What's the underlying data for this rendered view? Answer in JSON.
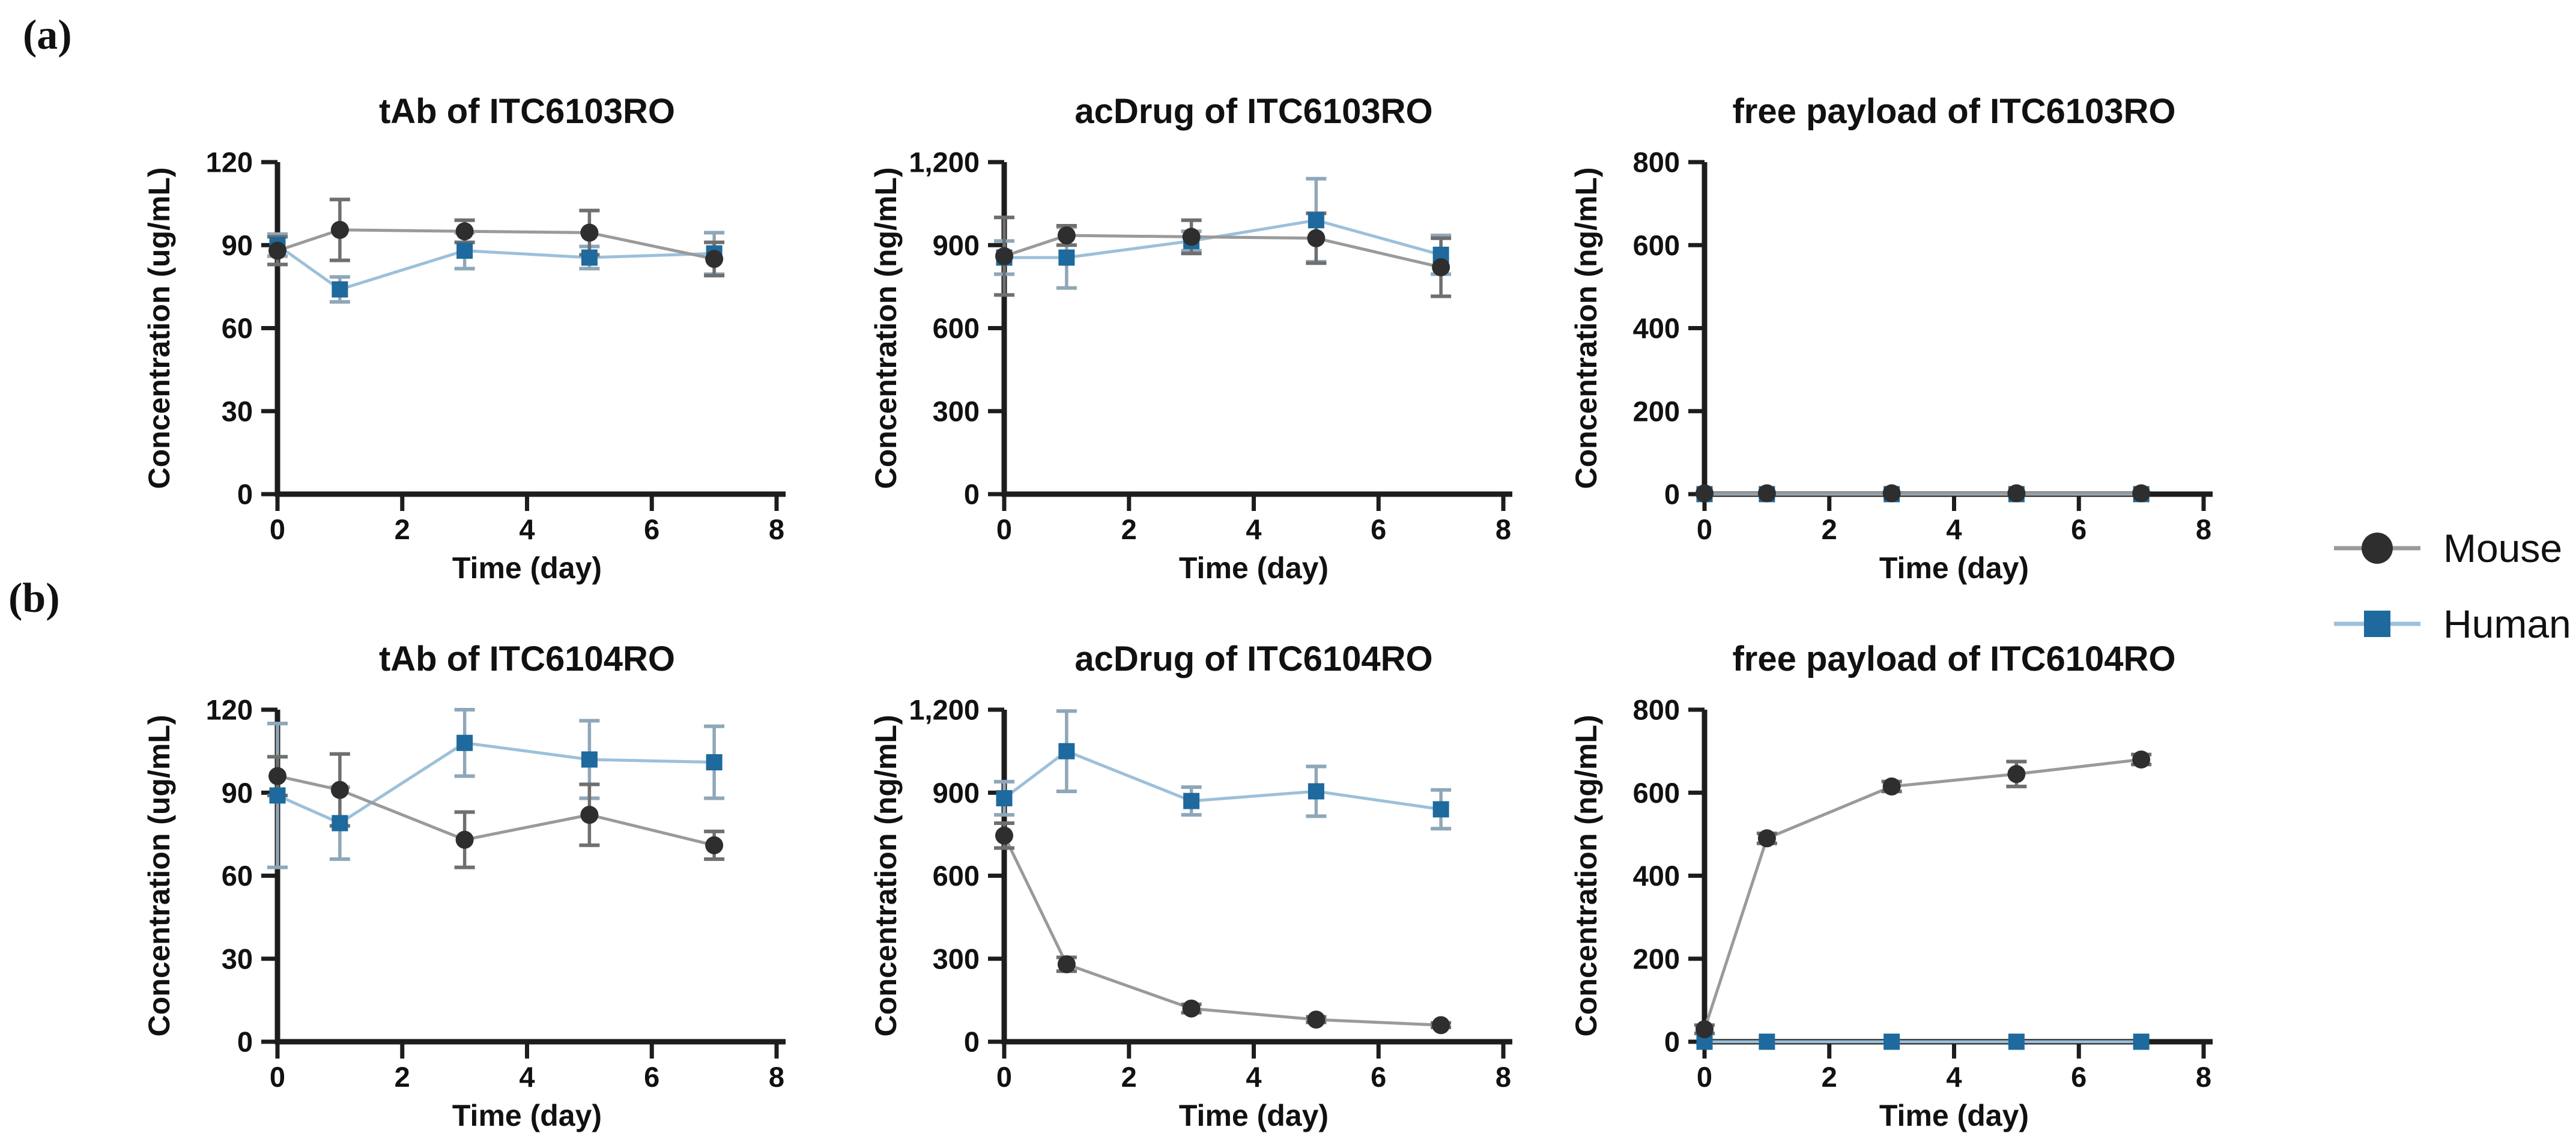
{
  "panels": [
    {
      "label": "(a)"
    },
    {
      "label": "(b)"
    }
  ],
  "legend": {
    "items": [
      {
        "label": "Mouse",
        "marker": "circle"
      },
      {
        "label": "Human",
        "marker": "square"
      }
    ]
  },
  "colors": {
    "mouse_marker": "#2e2e2e",
    "mouse_line": "#9a9a9a",
    "mouse_error": "#6f6f6f",
    "human_marker": "#1e699d",
    "human_line": "#9cc0da",
    "human_error": "#8fa7b8",
    "axis": "#1d1d1d",
    "text": "#111111"
  },
  "chart_data": [
    {
      "id": "tab-itc6103ro",
      "panel": "a",
      "type": "line",
      "title": "tAb of ITC6103RO",
      "ylabel": "Concentration  (ug/mL)",
      "xlabel": "Time (day)",
      "ylim": [
        0,
        120
      ],
      "ytick_values": [
        0,
        30,
        60,
        90,
        120
      ],
      "ytick_labels": [
        "0",
        "30",
        "60",
        "90",
        "120"
      ],
      "xlim": [
        0,
        8
      ],
      "xticks": [
        0,
        2,
        4,
        6,
        8
      ],
      "x": [
        0,
        1,
        3,
        5,
        7
      ],
      "series": [
        {
          "name": "Mouse",
          "values": [
            88,
            95.5,
            95,
            94.5,
            85
          ],
          "errors": [
            5,
            11,
            4,
            8,
            6
          ]
        },
        {
          "name": "Human",
          "values": [
            90,
            74,
            88,
            85.5,
            87
          ],
          "errors": [
            4,
            4.5,
            6.5,
            4,
            7.5
          ]
        }
      ]
    },
    {
      "id": "acdrug-itc6103ro",
      "panel": "a",
      "type": "line",
      "title": "acDrug of ITC6103RO",
      "ylabel": "Concentration (ng/mL)",
      "xlabel": "Time (day)",
      "ylim": [
        0,
        1200
      ],
      "ytick_values": [
        0,
        300,
        600,
        900,
        1200
      ],
      "ytick_labels": [
        "0",
        "300",
        "600",
        "900",
        "1,200"
      ],
      "xlim": [
        0,
        8
      ],
      "xticks": [
        0,
        2,
        4,
        6,
        8
      ],
      "x": [
        0,
        1,
        3,
        5,
        7
      ],
      "series": [
        {
          "name": "Mouse",
          "values": [
            860,
            935,
            930,
            925,
            820
          ],
          "errors": [
            140,
            35,
            60,
            90,
            105
          ]
        },
        {
          "name": "Human",
          "values": [
            855,
            855,
            915,
            990,
            865
          ],
          "errors": [
            60,
            110,
            35,
            150,
            70
          ]
        }
      ]
    },
    {
      "id": "freepayload-itc6103ro",
      "panel": "a",
      "type": "line",
      "title": "free payload of ITC6103RO",
      "ylabel": "Concentration  (ng/mL)",
      "xlabel": "Time (day)",
      "ylim": [
        0,
        800
      ],
      "ytick_values": [
        0,
        200,
        400,
        600,
        800
      ],
      "ytick_labels": [
        "0",
        "200",
        "400",
        "600",
        "800"
      ],
      "xlim": [
        0,
        8
      ],
      "xticks": [
        0,
        2,
        4,
        6,
        8
      ],
      "x": [
        0,
        1,
        3,
        5,
        7
      ],
      "series": [
        {
          "name": "Mouse",
          "values": [
            2,
            2,
            2,
            2,
            2
          ],
          "errors": [
            0,
            0,
            0,
            0,
            0
          ]
        },
        {
          "name": "Human",
          "values": [
            0,
            0,
            0,
            0,
            0
          ],
          "errors": [
            0,
            0,
            0,
            0,
            0
          ]
        }
      ]
    },
    {
      "id": "tab-itc6104ro",
      "panel": "b",
      "type": "line",
      "title": "tAb of ITC6104RO",
      "ylabel": "Concentration  (ug/mL)",
      "xlabel": "Time (day)",
      "ylim": [
        0,
        120
      ],
      "ytick_values": [
        0,
        30,
        60,
        90,
        120
      ],
      "ytick_labels": [
        "0",
        "30",
        "60",
        "90",
        "120"
      ],
      "xlim": [
        0,
        8
      ],
      "xticks": [
        0,
        2,
        4,
        6,
        8
      ],
      "x": [
        0,
        1,
        3,
        5,
        7
      ],
      "series": [
        {
          "name": "Mouse",
          "values": [
            96,
            91,
            73,
            82,
            71
          ],
          "errors": [
            7,
            13,
            10,
            11,
            5
          ]
        },
        {
          "name": "Human",
          "values": [
            89,
            79,
            108,
            102,
            101
          ],
          "errors": [
            26,
            13,
            12,
            14,
            13
          ]
        }
      ]
    },
    {
      "id": "acdrug-itc6104ro",
      "panel": "b",
      "type": "line",
      "title": "acDrug of ITC6104RO",
      "ylabel": "Concentration (ng/mL)",
      "xlabel": "Time (day)",
      "ylim": [
        0,
        1200
      ],
      "ytick_values": [
        0,
        300,
        600,
        900,
        1200
      ],
      "ytick_labels": [
        "0",
        "300",
        "600",
        "900",
        "1,200"
      ],
      "xlim": [
        0,
        8
      ],
      "xticks": [
        0,
        2,
        4,
        6,
        8
      ],
      "x": [
        0,
        1,
        3,
        5,
        7
      ],
      "series": [
        {
          "name": "Mouse",
          "values": [
            745,
            280,
            120,
            80,
            60
          ],
          "errors": [
            45,
            25,
            15,
            10,
            8
          ]
        },
        {
          "name": "Human",
          "values": [
            880,
            1050,
            870,
            905,
            840
          ],
          "errors": [
            60,
            145,
            50,
            90,
            70
          ]
        }
      ]
    },
    {
      "id": "freepayload-itc6104ro",
      "panel": "b",
      "type": "line",
      "title": "free payload of ITC6104RO",
      "ylabel": "Concentration  (ng/mL)",
      "xlabel": "Time (day)",
      "ylim": [
        0,
        800
      ],
      "ytick_values": [
        0,
        200,
        400,
        600,
        800
      ],
      "ytick_labels": [
        "0",
        "200",
        "400",
        "600",
        "800"
      ],
      "xlim": [
        0,
        8
      ],
      "xticks": [
        0,
        2,
        4,
        6,
        8
      ],
      "x": [
        0,
        1,
        3,
        5,
        7
      ],
      "series": [
        {
          "name": "Mouse",
          "values": [
            30,
            490,
            615,
            645,
            680
          ],
          "errors": [
            10,
            12,
            12,
            30,
            12
          ]
        },
        {
          "name": "Human",
          "values": [
            0,
            0,
            0,
            0,
            0
          ],
          "errors": [
            0,
            0,
            0,
            0,
            0
          ]
        }
      ]
    }
  ]
}
